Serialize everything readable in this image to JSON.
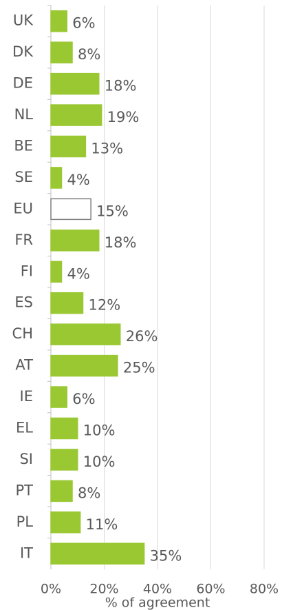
{
  "chart_data": {
    "type": "barh",
    "categories": [
      "UK",
      "DK",
      "DE",
      "NL",
      "BE",
      "SE",
      "EU",
      "FR",
      "FI",
      "ES",
      "CH",
      "AT",
      "IE",
      "EL",
      "SI",
      "PT",
      "PL",
      "IT"
    ],
    "values": [
      6,
      8,
      18,
      19,
      13,
      4,
      15,
      18,
      4,
      12,
      26,
      25,
      6,
      10,
      10,
      8,
      11,
      35
    ],
    "value_labels": [
      "6%",
      "8%",
      "18%",
      "19%",
      "13%",
      "4%",
      "15%",
      "18%",
      "4%",
      "12%",
      "26%",
      "25%",
      "6%",
      "10%",
      "10%",
      "8%",
      "11%",
      "35%"
    ],
    "colors": [
      "#9ac833",
      "#9ac833",
      "#9ac833",
      "#9ac833",
      "#9ac833",
      "#9ac833",
      "#ffffff",
      "#9ac833",
      "#9ac833",
      "#9ac833",
      "#9ac833",
      "#9ac833",
      "#9ac833",
      "#9ac833",
      "#9ac833",
      "#9ac833",
      "#9ac833",
      "#9ac833"
    ],
    "edgecolors": [
      "#9ac833",
      "#9ac833",
      "#9ac833",
      "#9ac833",
      "#9ac833",
      "#9ac833",
      "#7f7f7f",
      "#9ac833",
      "#9ac833",
      "#9ac833",
      "#9ac833",
      "#9ac833",
      "#9ac833",
      "#9ac833",
      "#9ac833",
      "#9ac833",
      "#9ac833",
      "#9ac833"
    ],
    "xlabel": "% of agreement",
    "xlim": [
      0,
      80
    ],
    "xticks": [
      {
        "value": 0,
        "label": "0%"
      },
      {
        "value": 20,
        "label": "20%"
      },
      {
        "value": 40,
        "label": "40%"
      },
      {
        "value": 60,
        "label": "60%"
      },
      {
        "value": 80,
        "label": "80%"
      }
    ],
    "grid": true
  }
}
